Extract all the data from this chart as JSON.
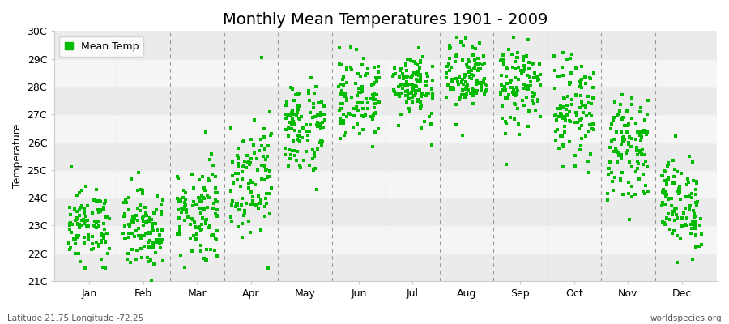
{
  "title": "Monthly Mean Temperatures 1901 - 2009",
  "ylabel": "Temperature",
  "xlabel_labels": [
    "Jan",
    "Feb",
    "Mar",
    "Apr",
    "May",
    "Jun",
    "Jul",
    "Aug",
    "Sep",
    "Oct",
    "Nov",
    "Dec"
  ],
  "ylim": [
    21.0,
    30.0
  ],
  "ytick_labels": [
    "21C",
    "22C",
    "23C",
    "24C",
    "25C",
    "26C",
    "27C",
    "28C",
    "29C",
    "30C"
  ],
  "ytick_values": [
    21,
    22,
    23,
    24,
    25,
    26,
    27,
    28,
    29,
    30
  ],
  "dot_color": "#00bb00",
  "bg_color": "#ffffff",
  "plot_bg_color": "#f5f5f5",
  "legend_label": "Mean Temp",
  "subtitle_left": "Latitude 21.75 Longitude -72.25",
  "subtitle_right": "worldspecies.org",
  "years": 109,
  "monthly_means": [
    23.0,
    22.9,
    23.5,
    24.8,
    26.5,
    27.6,
    28.1,
    28.3,
    28.0,
    27.2,
    25.8,
    23.8
  ],
  "monthly_stds": [
    0.65,
    0.7,
    0.9,
    1.1,
    0.85,
    0.75,
    0.65,
    0.65,
    0.75,
    0.9,
    0.85,
    0.85
  ],
  "title_fontsize": 14,
  "axis_fontsize": 9,
  "legend_fontsize": 9,
  "dot_size": 5,
  "figsize": [
    9.0,
    4.0
  ],
  "dpi": 100
}
